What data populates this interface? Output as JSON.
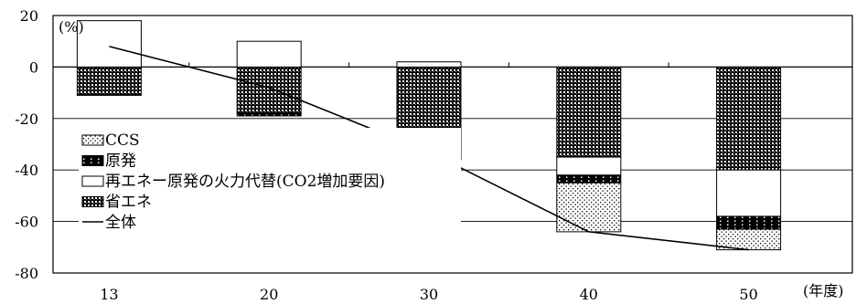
{
  "chart_data": {
    "type": "bar",
    "stacked": true,
    "ylabel": "(%)",
    "xlabel": "(年度)",
    "categories": [
      "13",
      "20",
      "30",
      "40",
      "50"
    ],
    "ylim": [
      -80,
      20
    ],
    "yticks": [
      20,
      0,
      -20,
      -40,
      -60,
      -80
    ],
    "grid": "horizontal",
    "legend_placement": "left-center",
    "series": [
      {
        "name": "省エネ",
        "pattern": "dense-checker",
        "values": [
          -11,
          -18,
          -27,
          -35,
          -40
        ]
      },
      {
        "name": "再エネー原発の火力代替(CO2増加要因)",
        "pattern": "white",
        "values": [
          18,
          10,
          2,
          -7,
          -18
        ]
      },
      {
        "name": "原発",
        "pattern": "solid-black-dots",
        "values": [
          0,
          -1,
          -2,
          -3,
          -5
        ]
      },
      {
        "name": "CCS",
        "pattern": "sparse-dots",
        "values": [
          0,
          0,
          -7,
          -19,
          -8
        ]
      }
    ],
    "line_series": {
      "name": "全体",
      "values": [
        8,
        -8,
        -33,
        -64,
        -71
      ]
    },
    "legend_order": [
      "CCS",
      "原発",
      "再エネー原発の火力代替(CO2増加要因)",
      "省エネ",
      "全体"
    ]
  }
}
